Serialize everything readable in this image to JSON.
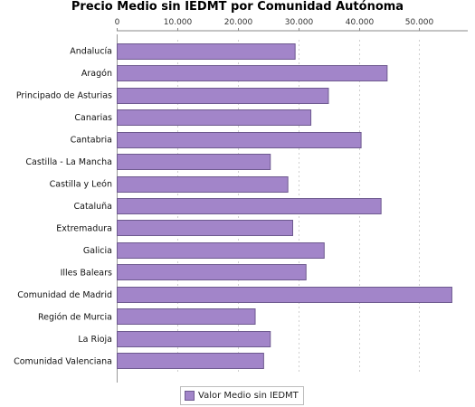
{
  "chart_data": {
    "type": "bar",
    "orientation": "horizontal",
    "title": "Precio Medio sin IEDMT por Comunidad Autónoma",
    "categories": [
      "Andalucía",
      "Aragón",
      "Principado de Asturias",
      "Canarias",
      "Cantabria",
      "Castilla - La Mancha",
      "Castilla y León",
      "Cataluña",
      "Extremadura",
      "Galicia",
      "Illes Balears",
      "Comunidad de Madrid",
      "Región de Murcia",
      "La Rioja",
      "Comunidad Valenciana"
    ],
    "series": [
      {
        "name": "Valor Medio sin IEDMT",
        "color": "#a285c9",
        "values": [
          29400,
          44600,
          34900,
          32000,
          40300,
          25300,
          28200,
          43600,
          29000,
          34200,
          31200,
          55300,
          22800,
          25300,
          24200
        ]
      }
    ],
    "x_ticks": [
      "0",
      "10.000",
      "20.000",
      "30.000",
      "40.000",
      "50.000"
    ],
    "x_tick_values": [
      0,
      10000,
      20000,
      30000,
      40000,
      50000
    ],
    "xlim": [
      0,
      58000
    ],
    "x_axis_position": "top",
    "grid": true,
    "legend_position": "bottom-center"
  }
}
